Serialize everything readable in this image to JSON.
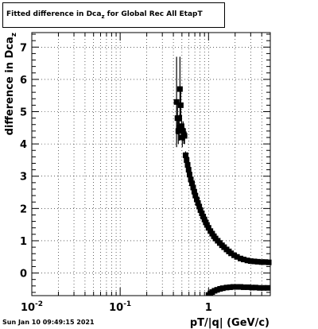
{
  "title": {
    "prefix": "Fitted difference in Dca",
    "subscript": "z",
    "suffix": " for Global Rec All EtapT"
  },
  "timestamp": "Sun Jan 10 09:49:15 2021",
  "chart_data": {
    "type": "scatter",
    "x_scale": "log",
    "xlim": [
      0.01,
      5
    ],
    "ylim": [
      -0.7,
      7.45
    ],
    "xlabel": "pT/|q| (GeV/c)",
    "ylabel_prefix": "difference in Dca",
    "ylabel_subscript": "z",
    "x_ticks": [
      {
        "value": 0.01,
        "base": "10",
        "exp": "-2"
      },
      {
        "value": 0.1,
        "base": "10",
        "exp": "-1"
      },
      {
        "value": 1,
        "base": "1",
        "exp": ""
      }
    ],
    "y_ticks": [
      "0",
      "1",
      "2",
      "3",
      "4",
      "5",
      "6",
      "7"
    ],
    "grid": true,
    "series": [
      {
        "points": [
          [
            0.435,
            5.3,
            1.4
          ],
          [
            0.445,
            4.8,
            0.5
          ],
          [
            0.455,
            4.4,
            0.4
          ],
          [
            0.465,
            4.5,
            0.4
          ],
          [
            0.475,
            5.7,
            1.0
          ],
          [
            0.485,
            5.2,
            0.5
          ],
          [
            0.495,
            4.55,
            0.35
          ],
          [
            0.505,
            4.2,
            0.3
          ],
          [
            0.515,
            4.4,
            0.3
          ],
          [
            0.525,
            4.3,
            0.3
          ],
          [
            0.535,
            4.25,
            0.25
          ],
          [
            0.55,
            3.65,
            0.12
          ],
          [
            0.565,
            3.5,
            0.1
          ],
          [
            0.58,
            3.35,
            0.1
          ],
          [
            0.595,
            3.2,
            0.1
          ],
          [
            0.61,
            3.05,
            0.08
          ],
          [
            0.63,
            2.9,
            0.08
          ],
          [
            0.65,
            2.78,
            0.07
          ],
          [
            0.67,
            2.65,
            0.07
          ],
          [
            0.69,
            2.52,
            0.06
          ],
          [
            0.71,
            2.4,
            0.06
          ],
          [
            0.735,
            2.28,
            0.05
          ],
          [
            0.76,
            2.17,
            0.05
          ],
          [
            0.785,
            2.06,
            0.05
          ],
          [
            0.81,
            1.95,
            0.04
          ],
          [
            0.84,
            1.85,
            0.04
          ],
          [
            0.87,
            1.75,
            0.04
          ],
          [
            0.9,
            1.66,
            0.04
          ],
          [
            0.93,
            1.57,
            0.03
          ],
          [
            0.96,
            1.49,
            0.03
          ],
          [
            1.0,
            1.4,
            0.03
          ],
          [
            1.05,
            1.3,
            0.03
          ],
          [
            1.1,
            1.22,
            0.03
          ],
          [
            1.15,
            1.14,
            0.03
          ],
          [
            1.2,
            1.07,
            0.03
          ],
          [
            1.27,
            1.0,
            0.03
          ],
          [
            1.34,
            0.93,
            0.03
          ],
          [
            1.42,
            0.86,
            0.03
          ],
          [
            1.5,
            0.8,
            0.03
          ],
          [
            1.6,
            0.73,
            0.03
          ],
          [
            1.7,
            0.67,
            0.03
          ],
          [
            1.8,
            0.61,
            0.03
          ],
          [
            1.95,
            0.55,
            0.03
          ],
          [
            2.1,
            0.5,
            0.03
          ],
          [
            2.3,
            0.45,
            0.03
          ],
          [
            2.5,
            0.42,
            0.03
          ],
          [
            2.75,
            0.39,
            0.03
          ],
          [
            3.0,
            0.37,
            0.03
          ],
          [
            3.3,
            0.36,
            0.03
          ],
          [
            3.6,
            0.35,
            0.03
          ],
          [
            4.0,
            0.34,
            0.03
          ],
          [
            4.4,
            0.34,
            0.03
          ],
          [
            4.8,
            0.33,
            0.03
          ]
        ]
      },
      {
        "points": [
          [
            1.0,
            -0.68,
            0.03
          ],
          [
            1.05,
            -0.63,
            0.03
          ],
          [
            1.1,
            -0.59,
            0.03
          ],
          [
            1.17,
            -0.55,
            0.03
          ],
          [
            1.25,
            -0.52,
            0.03
          ],
          [
            1.35,
            -0.49,
            0.03
          ],
          [
            1.45,
            -0.47,
            0.03
          ],
          [
            1.6,
            -0.45,
            0.03
          ],
          [
            1.75,
            -0.44,
            0.03
          ],
          [
            1.9,
            -0.43,
            0.03
          ],
          [
            2.1,
            -0.43,
            0.03
          ],
          [
            2.3,
            -0.43,
            0.03
          ],
          [
            2.5,
            -0.44,
            0.03
          ],
          [
            2.8,
            -0.44,
            0.03
          ],
          [
            3.1,
            -0.45,
            0.03
          ],
          [
            3.4,
            -0.45,
            0.03
          ],
          [
            3.8,
            -0.46,
            0.03
          ],
          [
            4.2,
            -0.46,
            0.03
          ],
          [
            4.7,
            -0.46,
            0.03
          ]
        ]
      }
    ]
  }
}
